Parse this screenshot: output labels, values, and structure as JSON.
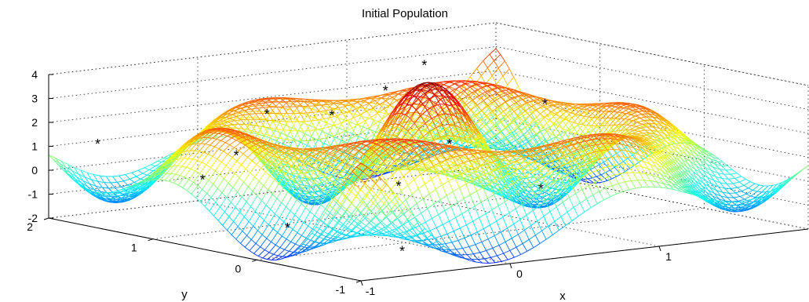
{
  "chart_data": {
    "type": "surface",
    "title": "Initial Population",
    "xlabel": "x",
    "ylabel": "y",
    "zlabel": "",
    "xlim": [
      -1,
      2
    ],
    "ylim": [
      -1,
      2
    ],
    "zlim": [
      -2,
      4
    ],
    "x_ticks": [
      "-1",
      "0",
      "1"
    ],
    "y_ticks": [
      "-1",
      "0",
      "1",
      "2"
    ],
    "z_ticks": [
      "-2",
      "-1",
      "0",
      "1",
      "2",
      "3",
      "4"
    ],
    "grid": true,
    "colormap": "jet",
    "marker": "*",
    "population": [
      {
        "x": -0.95,
        "y": 1.6,
        "z": 1.4
      },
      {
        "x": -0.7,
        "y": 0.95,
        "z": 0.3
      },
      {
        "x": -0.55,
        "y": 0.35,
        "z": -1.3
      },
      {
        "x": -0.2,
        "y": -0.25,
        "z": -2.0
      },
      {
        "x": -0.3,
        "y": 1.2,
        "z": 0.8
      },
      {
        "x": 0.15,
        "y": 1.55,
        "z": 1.9
      },
      {
        "x": 0.3,
        "y": 0.5,
        "z": -0.3
      },
      {
        "x": 0.55,
        "y": 1.5,
        "z": 1.6
      },
      {
        "x": 1.05,
        "y": 1.7,
        "z": 2.1
      },
      {
        "x": 1.2,
        "y": 1.3,
        "z": 0.1
      },
      {
        "x": 1.15,
        "y": 0.35,
        "z": -0.9
      },
      {
        "x": 1.7,
        "y": 1.1,
        "z": 1.6
      },
      {
        "x": 1.45,
        "y": 1.9,
        "z": 2.7
      }
    ]
  }
}
